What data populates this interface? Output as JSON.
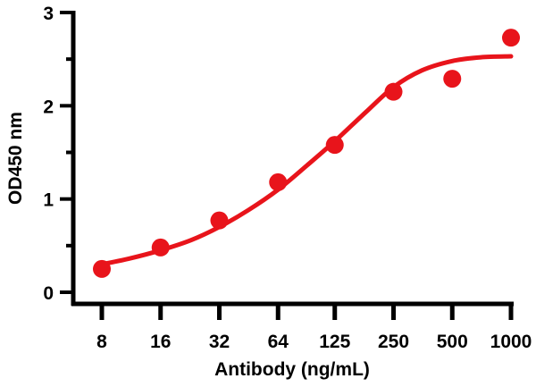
{
  "chart_data": {
    "type": "scatter",
    "xlabel": "Antibody (ng/mL)",
    "ylabel": "OD450 nm",
    "x_scale": "log2",
    "xlim": [
      8,
      1000
    ],
    "ylim": [
      0,
      3
    ],
    "x_ticks": [
      8,
      16,
      32,
      64,
      125,
      250,
      500,
      1000
    ],
    "x_tick_labels": [
      "8",
      "16",
      "32",
      "64",
      "125",
      "250",
      "500",
      "1000"
    ],
    "y_ticks": [
      0,
      1,
      2,
      3
    ],
    "y_tick_labels": [
      "0",
      "1",
      "2",
      "3"
    ],
    "y_minor_ticks": [
      0.5,
      1.5,
      2.5
    ],
    "grid": false,
    "color": "#e8141b",
    "points": [
      {
        "x": 8,
        "y": 0.25
      },
      {
        "x": 16,
        "y": 0.48
      },
      {
        "x": 32,
        "y": 0.77
      },
      {
        "x": 64,
        "y": 1.18
      },
      {
        "x": 125,
        "y": 1.58
      },
      {
        "x": 250,
        "y": 2.15
      },
      {
        "x": 500,
        "y": 2.29
      },
      {
        "x": 1000,
        "y": 2.73
      }
    ],
    "fit_curve": [
      {
        "x": 8,
        "y": 0.3
      },
      {
        "x": 11,
        "y": 0.36
      },
      {
        "x": 16,
        "y": 0.45
      },
      {
        "x": 23,
        "y": 0.56
      },
      {
        "x": 32,
        "y": 0.7
      },
      {
        "x": 45,
        "y": 0.88
      },
      {
        "x": 64,
        "y": 1.1
      },
      {
        "x": 90,
        "y": 1.36
      },
      {
        "x": 125,
        "y": 1.62
      },
      {
        "x": 180,
        "y": 1.93
      },
      {
        "x": 250,
        "y": 2.2
      },
      {
        "x": 350,
        "y": 2.38
      },
      {
        "x": 500,
        "y": 2.48
      },
      {
        "x": 700,
        "y": 2.52
      },
      {
        "x": 1000,
        "y": 2.53
      }
    ]
  }
}
